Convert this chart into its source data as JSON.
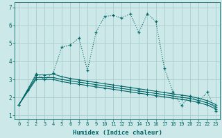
{
  "xlabel": "Humidex (Indice chaleur)",
  "ylabel": "",
  "background_color": "#cde8e8",
  "grid_color": "#aacccc",
  "line_color": "#006666",
  "xlim": [
    -0.5,
    23.5
  ],
  "ylim": [
    0.8,
    7.3
  ],
  "xticks": [
    0,
    1,
    2,
    3,
    4,
    5,
    6,
    7,
    8,
    9,
    10,
    11,
    12,
    13,
    14,
    15,
    16,
    17,
    18,
    19,
    20,
    21,
    22,
    23
  ],
  "yticks": [
    1,
    2,
    3,
    4,
    5,
    6,
    7
  ],
  "curve1": {
    "x": [
      0,
      1,
      2,
      3,
      4,
      5,
      6,
      7,
      8,
      9,
      10,
      11,
      12,
      13,
      14,
      15,
      16,
      17,
      18,
      19,
      20,
      21,
      22,
      23
    ],
    "y": [
      1.6,
      2.4,
      3.3,
      3.0,
      3.35,
      4.8,
      4.9,
      5.3,
      3.5,
      5.6,
      6.5,
      6.55,
      6.4,
      6.65,
      5.6,
      6.65,
      6.2,
      3.6,
      2.3,
      1.55,
      2.1,
      1.75,
      2.3,
      1.25
    ],
    "style": "dotted"
  },
  "curve2": {
    "x": [
      0,
      2,
      3,
      4,
      5,
      6,
      7,
      8,
      9,
      10,
      11,
      12,
      13,
      14,
      15,
      16,
      17,
      18,
      19,
      20,
      21,
      22,
      23
    ],
    "y": [
      1.6,
      3.25,
      3.25,
      3.3,
      3.15,
      3.05,
      2.98,
      2.9,
      2.83,
      2.76,
      2.69,
      2.62,
      2.55,
      2.48,
      2.41,
      2.34,
      2.27,
      2.2,
      2.13,
      2.06,
      1.95,
      1.82,
      1.6
    ],
    "style": "solid"
  },
  "curve3": {
    "x": [
      0,
      2,
      3,
      4,
      5,
      6,
      7,
      8,
      9,
      10,
      11,
      12,
      13,
      14,
      15,
      16,
      17,
      18,
      19,
      20,
      21,
      22,
      23
    ],
    "y": [
      1.6,
      3.1,
      3.1,
      3.1,
      3.0,
      2.92,
      2.85,
      2.78,
      2.71,
      2.64,
      2.57,
      2.5,
      2.43,
      2.36,
      2.29,
      2.22,
      2.15,
      2.08,
      2.01,
      1.94,
      1.83,
      1.7,
      1.48
    ],
    "style": "solid"
  },
  "curve4": {
    "x": [
      0,
      2,
      3,
      4,
      5,
      6,
      7,
      8,
      9,
      10,
      11,
      12,
      13,
      14,
      15,
      16,
      17,
      18,
      19,
      20,
      21,
      22,
      23
    ],
    "y": [
      1.6,
      3.0,
      3.0,
      3.0,
      2.88,
      2.8,
      2.73,
      2.66,
      2.59,
      2.52,
      2.45,
      2.38,
      2.31,
      2.24,
      2.17,
      2.1,
      2.03,
      1.96,
      1.89,
      1.82,
      1.71,
      1.58,
      1.36
    ],
    "style": "solid"
  }
}
